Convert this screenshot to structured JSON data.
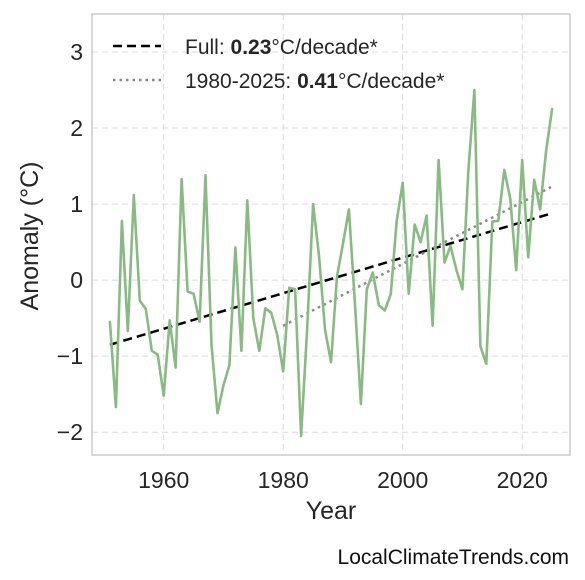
{
  "watermark": "LocalClimateTrends.com",
  "colors": {
    "series": "#88bb82",
    "trend_full": "#000000",
    "trend_recent": "#888888",
    "grid": "#dcdcdc",
    "frame": "#cccccc"
  },
  "legend": [
    {
      "prefix": "Full: ",
      "value": "0.23",
      "suffix": "°C/decade*",
      "style": "dashed"
    },
    {
      "prefix": "1980-2025: ",
      "value": "0.41",
      "suffix": "°C/decade*",
      "style": "dotted"
    }
  ],
  "chart_data": {
    "type": "line",
    "xlabel": "Year",
    "ylabel": "Anomaly (°C)",
    "xlim": [
      1948,
      2028
    ],
    "ylim": [
      -2.3,
      3.5
    ],
    "xticks": [
      1960,
      1980,
      2000,
      2020
    ],
    "yticks": [
      -2,
      -1,
      0,
      1,
      2,
      3
    ],
    "ytick_labels": [
      "−2",
      "−1",
      "0",
      "1",
      "2",
      "3"
    ],
    "grid": true,
    "legend_position": "top-left",
    "series": [
      {
        "x": [
          1951,
          1952,
          1953,
          1954,
          1955,
          1956,
          1957,
          1958,
          1959,
          1960,
          1961,
          1962,
          1963,
          1964,
          1965,
          1966,
          1967,
          1968,
          1969,
          1970,
          1971,
          1972,
          1973,
          1974,
          1975,
          1976,
          1977,
          1978,
          1979,
          1980,
          1981,
          1982,
          1983,
          1984,
          1985,
          1986,
          1987,
          1988,
          1989,
          1990,
          1991,
          1992,
          1993,
          1994,
          1995,
          1996,
          1997,
          1998,
          1999,
          2000,
          2001,
          2002,
          2003,
          2004,
          2005,
          2006,
          2007,
          2008,
          2009,
          2010,
          2011,
          2012,
          2013,
          2014,
          2015,
          2016,
          2017,
          2018,
          2019,
          2020,
          2021,
          2022,
          2023,
          2024,
          2025
        ],
        "y": [
          -0.55,
          -1.67,
          0.78,
          -0.67,
          1.12,
          -0.27,
          -0.38,
          -0.93,
          -0.98,
          -1.52,
          -0.53,
          -1.15,
          1.33,
          -0.15,
          -0.18,
          -0.55,
          1.38,
          -0.85,
          -1.75,
          -1.38,
          -1.12,
          0.43,
          -0.93,
          1.05,
          -0.5,
          -0.93,
          -0.37,
          -0.43,
          -0.72,
          -1.2,
          -0.1,
          -0.12,
          -2.05,
          -0.65,
          1.0,
          0.32,
          -0.65,
          -1.08,
          0.05,
          0.48,
          0.93,
          -0.3,
          -1.63,
          -0.12,
          0.1,
          -0.33,
          -0.4,
          -0.18,
          0.78,
          1.28,
          -0.18,
          0.73,
          0.5,
          0.85,
          -0.6,
          1.58,
          0.23,
          0.45,
          0.13,
          -0.12,
          1.45,
          2.5,
          -0.87,
          -1.1,
          0.77,
          0.78,
          1.45,
          1.07,
          0.13,
          1.58,
          0.3,
          1.32,
          0.93,
          1.7,
          2.25
        ]
      }
    ],
    "trends": [
      {
        "name": "Full",
        "x": [
          1951,
          2025
        ],
        "y": [
          -0.85,
          0.88
        ],
        "style": "dashed"
      },
      {
        "name": "1980-2025",
        "x": [
          1980,
          2025
        ],
        "y": [
          -0.6,
          1.23
        ],
        "style": "dotted"
      }
    ]
  }
}
